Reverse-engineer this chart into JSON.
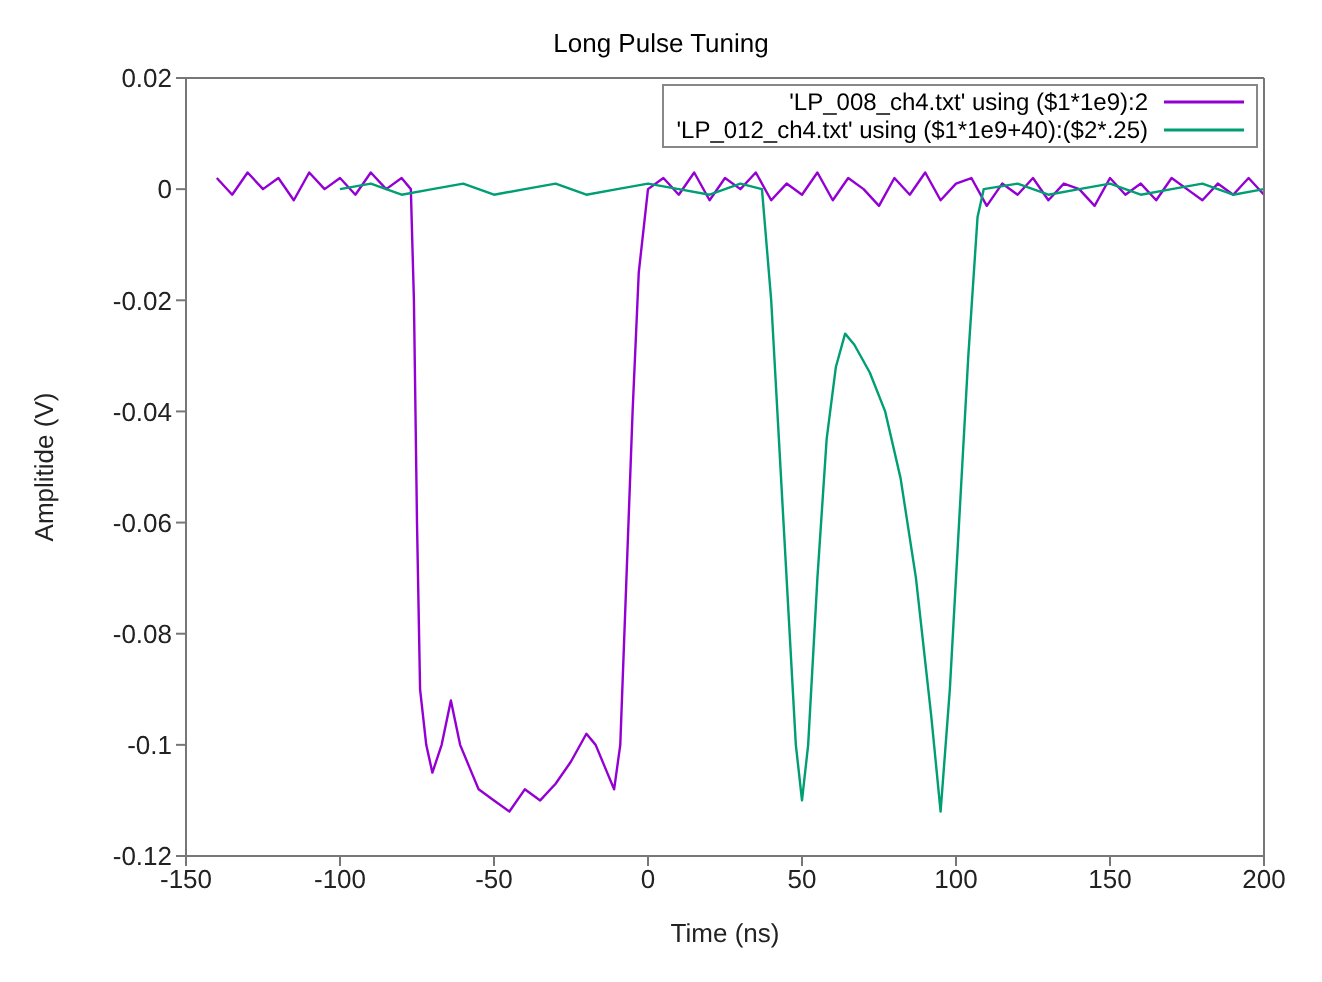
{
  "chart_data": {
    "type": "line",
    "title": "Long Pulse Tuning",
    "xlabel": "Time (ns)",
    "ylabel": "Amplitide (V)",
    "xlim": [
      -150,
      200
    ],
    "xticks": [
      -150,
      -100,
      -50,
      0,
      50,
      100,
      150,
      200
    ],
    "ylim": [
      -0.12,
      0.02
    ],
    "yticks": [
      -0.12,
      -0.1,
      -0.08,
      -0.06,
      -0.04,
      -0.02,
      0,
      0.02
    ],
    "legend": "top right",
    "marker": "none",
    "line_style": "solid",
    "series": [
      {
        "name": "'LP_008_ch4.txt' using ($1*1e9):2",
        "color": "#9400d3",
        "x": [
          -140,
          -135,
          -130,
          -125,
          -120,
          -115,
          -110,
          -105,
          -100,
          -95,
          -90,
          -85,
          -80,
          -77,
          -76,
          -75,
          -74,
          -72,
          -70,
          -67,
          -64,
          -61,
          -58,
          -55,
          -50,
          -45,
          -40,
          -35,
          -30,
          -25,
          -20,
          -17,
          -14,
          -11,
          -9,
          -7,
          -5,
          -3,
          -1,
          0,
          5,
          10,
          15,
          20,
          25,
          30,
          35,
          40,
          45,
          50,
          55,
          60,
          65,
          70,
          75,
          80,
          85,
          90,
          95,
          100,
          105,
          110,
          115,
          120,
          125,
          130,
          135,
          140,
          145,
          150,
          155,
          160,
          165,
          170,
          175,
          180,
          185,
          190,
          195,
          200
        ],
        "values": [
          0.002,
          -0.001,
          0.003,
          0,
          0.002,
          -0.002,
          0.003,
          0,
          0.002,
          -0.001,
          0.003,
          0,
          0.002,
          0,
          -0.02,
          -0.06,
          -0.09,
          -0.1,
          -0.105,
          -0.1,
          -0.092,
          -0.1,
          -0.104,
          -0.108,
          -0.11,
          -0.112,
          -0.108,
          -0.11,
          -0.107,
          -0.103,
          -0.098,
          -0.1,
          -0.104,
          -0.108,
          -0.1,
          -0.07,
          -0.04,
          -0.015,
          -0.005,
          0,
          0.002,
          -0.001,
          0.003,
          -0.002,
          0.002,
          0,
          0.003,
          -0.002,
          0.001,
          -0.001,
          0.003,
          -0.002,
          0.002,
          0,
          -0.003,
          0.002,
          -0.001,
          0.003,
          -0.002,
          0.001,
          0.002,
          -0.003,
          0.001,
          -0.001,
          0.002,
          -0.002,
          0.001,
          0,
          -0.003,
          0.002,
          -0.001,
          0.001,
          -0.002,
          0.002,
          0,
          -0.002,
          0.001,
          -0.001,
          0.002,
          -0.001
        ]
      },
      {
        "name": "'LP_012_ch4.txt' using ($1*1e9+40):($2*.25)",
        "color": "#009e73",
        "x": [
          -100,
          -90,
          -80,
          -70,
          -60,
          -50,
          -40,
          -30,
          -20,
          -10,
          0,
          10,
          20,
          30,
          37,
          40,
          44,
          48,
          50,
          52,
          55,
          58,
          61,
          64,
          67,
          72,
          77,
          82,
          87,
          92,
          95,
          98,
          101,
          104,
          107,
          109,
          120,
          130,
          140,
          150,
          160,
          170,
          180,
          190,
          200
        ],
        "values": [
          0,
          0.001,
          -0.001,
          0,
          0.001,
          -0.001,
          0,
          0.001,
          -0.001,
          0,
          0.001,
          0,
          -0.001,
          0.001,
          0,
          -0.02,
          -0.06,
          -0.1,
          -0.11,
          -0.1,
          -0.07,
          -0.045,
          -0.032,
          -0.026,
          -0.028,
          -0.033,
          -0.04,
          -0.052,
          -0.07,
          -0.095,
          -0.112,
          -0.09,
          -0.06,
          -0.03,
          -0.005,
          0,
          0.001,
          -0.001,
          0,
          0.001,
          -0.001,
          0,
          0.001,
          -0.001,
          0
        ]
      }
    ]
  }
}
